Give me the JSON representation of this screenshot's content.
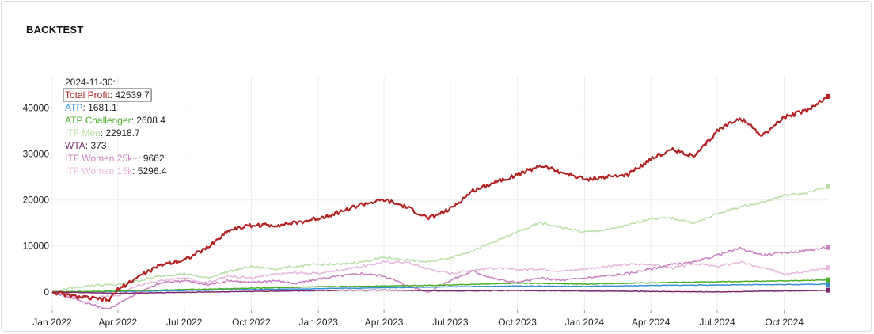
{
  "card": {
    "title": "BACKTEST"
  },
  "chart_data": {
    "type": "line",
    "title": "",
    "xlabel": "",
    "ylabel": "",
    "x_range": [
      "2022-01-01",
      "2024-11-30"
    ],
    "ylim": [
      -4000,
      47000
    ],
    "y_ticks": [
      0,
      10000,
      20000,
      30000,
      40000
    ],
    "x_ticks": [
      {
        "date": "2022-01-01",
        "label": "Jan 2022"
      },
      {
        "date": "2022-04-01",
        "label": "Apr 2022"
      },
      {
        "date": "2022-07-01",
        "label": "Jul 2022"
      },
      {
        "date": "2022-10-01",
        "label": "Oct 2022"
      },
      {
        "date": "2023-01-01",
        "label": "Jan 2023"
      },
      {
        "date": "2023-04-01",
        "label": "Apr 2023"
      },
      {
        "date": "2023-07-01",
        "label": "Jul 2023"
      },
      {
        "date": "2023-10-01",
        "label": "Oct 2023"
      },
      {
        "date": "2024-01-01",
        "label": "Jan 2024"
      },
      {
        "date": "2024-04-01",
        "label": "Apr 2024"
      },
      {
        "date": "2024-07-01",
        "label": "Jul 2024"
      },
      {
        "date": "2024-10-01",
        "label": "Oct 2024"
      }
    ],
    "grid": true,
    "legend": {
      "placement": "top-left",
      "date": "2024-11-30:"
    },
    "series": [
      {
        "name": "ITF Women 15k",
        "color": "#e6b8dc",
        "final_value": "5296.4",
        "points": [
          [
            "2022-01-01",
            0
          ],
          [
            "2022-02-01",
            -1000
          ],
          [
            "2022-03-01",
            -1200
          ],
          [
            "2022-04-01",
            -800
          ],
          [
            "2022-05-01",
            1500
          ],
          [
            "2022-06-01",
            2500
          ],
          [
            "2022-07-01",
            3000
          ],
          [
            "2022-08-01",
            2000
          ],
          [
            "2022-09-01",
            3500
          ],
          [
            "2022-10-01",
            3000
          ],
          [
            "2022-11-01",
            3800
          ],
          [
            "2022-12-01",
            4200
          ],
          [
            "2023-01-01",
            4000
          ],
          [
            "2023-02-01",
            4800
          ],
          [
            "2023-03-01",
            5500
          ],
          [
            "2023-04-01",
            6500
          ],
          [
            "2023-05-01",
            6500
          ],
          [
            "2023-06-01",
            5000
          ],
          [
            "2023-07-01",
            4000
          ],
          [
            "2023-08-01",
            4800
          ],
          [
            "2023-09-01",
            5200
          ],
          [
            "2023-10-01",
            4800
          ],
          [
            "2023-11-01",
            5000
          ],
          [
            "2023-12-01",
            4500
          ],
          [
            "2024-01-01",
            5000
          ],
          [
            "2024-02-01",
            5500
          ],
          [
            "2024-03-01",
            6000
          ],
          [
            "2024-04-01",
            6000
          ],
          [
            "2024-05-01",
            5200
          ],
          [
            "2024-06-01",
            6200
          ],
          [
            "2024-07-01",
            5500
          ],
          [
            "2024-08-01",
            6500
          ],
          [
            "2024-09-01",
            5200
          ],
          [
            "2024-10-01",
            4000
          ],
          [
            "2024-11-01",
            4500
          ],
          [
            "2024-11-30",
            5296.4
          ]
        ]
      },
      {
        "name": "ITF Women 25k+",
        "color": "#c97fbf",
        "final_value": "9662",
        "points": [
          [
            "2022-01-01",
            0
          ],
          [
            "2022-02-01",
            -1500
          ],
          [
            "2022-03-01",
            -3000
          ],
          [
            "2022-03-20",
            -3800
          ],
          [
            "2022-04-01",
            -2500
          ],
          [
            "2022-05-01",
            0
          ],
          [
            "2022-06-01",
            2000
          ],
          [
            "2022-07-01",
            2500
          ],
          [
            "2022-08-01",
            1500
          ],
          [
            "2022-09-01",
            2500
          ],
          [
            "2022-10-01",
            2000
          ],
          [
            "2022-11-01",
            2500
          ],
          [
            "2022-12-01",
            1800
          ],
          [
            "2023-01-01",
            2800
          ],
          [
            "2023-02-01",
            3500
          ],
          [
            "2023-03-01",
            4000
          ],
          [
            "2023-04-01",
            3500
          ],
          [
            "2023-05-01",
            1500
          ],
          [
            "2023-06-01",
            0
          ],
          [
            "2023-07-01",
            2500
          ],
          [
            "2023-08-01",
            4500
          ],
          [
            "2023-09-01",
            2800
          ],
          [
            "2023-10-01",
            2000
          ],
          [
            "2023-11-01",
            3000
          ],
          [
            "2023-12-01",
            2500
          ],
          [
            "2024-01-01",
            3000
          ],
          [
            "2024-02-01",
            3500
          ],
          [
            "2024-03-01",
            4000
          ],
          [
            "2024-04-01",
            5000
          ],
          [
            "2024-05-01",
            6000
          ],
          [
            "2024-06-01",
            6500
          ],
          [
            "2024-07-01",
            8000
          ],
          [
            "2024-08-01",
            9500
          ],
          [
            "2024-09-01",
            8000
          ],
          [
            "2024-10-01",
            8500
          ],
          [
            "2024-11-01",
            9000
          ],
          [
            "2024-11-30",
            9662
          ]
        ]
      },
      {
        "name": "ITF Men",
        "color": "#b8e0a8",
        "final_value": "22918.7",
        "points": [
          [
            "2022-01-01",
            0
          ],
          [
            "2022-02-01",
            1000
          ],
          [
            "2022-03-01",
            1500
          ],
          [
            "2022-04-01",
            1500
          ],
          [
            "2022-05-01",
            2500
          ],
          [
            "2022-06-01",
            3500
          ],
          [
            "2022-07-01",
            4000
          ],
          [
            "2022-08-01",
            3000
          ],
          [
            "2022-09-01",
            4500
          ],
          [
            "2022-10-01",
            5500
          ],
          [
            "2022-11-01",
            5000
          ],
          [
            "2022-12-01",
            5500
          ],
          [
            "2023-01-01",
            6000
          ],
          [
            "2023-02-01",
            6000
          ],
          [
            "2023-03-01",
            6500
          ],
          [
            "2023-04-01",
            7500
          ],
          [
            "2023-05-01",
            7000
          ],
          [
            "2023-06-01",
            6500
          ],
          [
            "2023-07-01",
            7500
          ],
          [
            "2023-08-01",
            9000
          ],
          [
            "2023-09-01",
            11000
          ],
          [
            "2023-10-01",
            13000
          ],
          [
            "2023-11-01",
            15000
          ],
          [
            "2023-12-01",
            14000
          ],
          [
            "2024-01-01",
            13000
          ],
          [
            "2024-02-01",
            13500
          ],
          [
            "2024-03-01",
            14500
          ],
          [
            "2024-04-01",
            16000
          ],
          [
            "2024-05-01",
            16000
          ],
          [
            "2024-06-01",
            15000
          ],
          [
            "2024-07-01",
            17000
          ],
          [
            "2024-08-01",
            18500
          ],
          [
            "2024-09-01",
            19500
          ],
          [
            "2024-10-01",
            21000
          ],
          [
            "2024-11-01",
            21500
          ],
          [
            "2024-11-30",
            22918.7
          ]
        ]
      },
      {
        "name": "ATP",
        "color": "#3a8fd9",
        "final_value": "1681.1",
        "points": [
          [
            "2022-01-01",
            0
          ],
          [
            "2022-04-01",
            100
          ],
          [
            "2022-07-01",
            300
          ],
          [
            "2022-10-01",
            500
          ],
          [
            "2023-01-01",
            700
          ],
          [
            "2023-04-01",
            900
          ],
          [
            "2023-07-01",
            1100
          ],
          [
            "2023-10-01",
            1300
          ],
          [
            "2024-01-01",
            1200
          ],
          [
            "2024-04-01",
            1400
          ],
          [
            "2024-07-01",
            1500
          ],
          [
            "2024-10-01",
            1600
          ],
          [
            "2024-11-30",
            1681.1
          ]
        ]
      },
      {
        "name": "ATP Challenger",
        "color": "#4caf2a",
        "final_value": "2608.4",
        "points": [
          [
            "2022-01-01",
            0
          ],
          [
            "2022-04-01",
            200
          ],
          [
            "2022-07-01",
            500
          ],
          [
            "2022-10-01",
            800
          ],
          [
            "2023-01-01",
            1100
          ],
          [
            "2023-04-01",
            1300
          ],
          [
            "2023-07-01",
            1500
          ],
          [
            "2023-10-01",
            1900
          ],
          [
            "2024-01-01",
            1700
          ],
          [
            "2024-04-01",
            2000
          ],
          [
            "2024-07-01",
            2200
          ],
          [
            "2024-10-01",
            2400
          ],
          [
            "2024-11-30",
            2608.4
          ]
        ]
      },
      {
        "name": "WTA",
        "color": "#7d2b6e",
        "final_value": "373",
        "points": [
          [
            "2022-01-01",
            0
          ],
          [
            "2022-04-01",
            -300
          ],
          [
            "2022-07-01",
            -100
          ],
          [
            "2022-10-01",
            100
          ],
          [
            "2023-01-01",
            300
          ],
          [
            "2023-04-01",
            400
          ],
          [
            "2023-07-01",
            200
          ],
          [
            "2023-10-01",
            300
          ],
          [
            "2024-01-01",
            200
          ],
          [
            "2024-04-01",
            100
          ],
          [
            "2024-07-01",
            0
          ],
          [
            "2024-10-01",
            200
          ],
          [
            "2024-11-30",
            373
          ]
        ]
      },
      {
        "name": "Total Profit",
        "color": "#b22222",
        "final_value": "42539.7",
        "points": [
          [
            "2022-01-01",
            0
          ],
          [
            "2022-02-01",
            -1000
          ],
          [
            "2022-03-01",
            -1500
          ],
          [
            "2022-03-20",
            -1800
          ],
          [
            "2022-04-01",
            500
          ],
          [
            "2022-05-01",
            3500
          ],
          [
            "2022-06-01",
            6000
          ],
          [
            "2022-07-01",
            7000
          ],
          [
            "2022-08-01",
            9500
          ],
          [
            "2022-09-01",
            13500
          ],
          [
            "2022-10-01",
            14500
          ],
          [
            "2022-11-01",
            14500
          ],
          [
            "2022-12-01",
            15000
          ],
          [
            "2023-01-01",
            16000
          ],
          [
            "2023-02-01",
            17500
          ],
          [
            "2023-03-01",
            19000
          ],
          [
            "2023-04-01",
            20000
          ],
          [
            "2023-05-01",
            18500
          ],
          [
            "2023-06-01",
            16000
          ],
          [
            "2023-07-01",
            18000
          ],
          [
            "2023-08-01",
            22000
          ],
          [
            "2023-09-01",
            24000
          ],
          [
            "2023-10-01",
            25500
          ],
          [
            "2023-11-01",
            27500
          ],
          [
            "2023-12-01",
            26000
          ],
          [
            "2024-01-01",
            24500
          ],
          [
            "2024-02-01",
            25000
          ],
          [
            "2024-03-01",
            25500
          ],
          [
            "2024-04-01",
            29000
          ],
          [
            "2024-05-01",
            31000
          ],
          [
            "2024-06-01",
            29500
          ],
          [
            "2024-07-01",
            35000
          ],
          [
            "2024-08-01",
            38000
          ],
          [
            "2024-09-01",
            34000
          ],
          [
            "2024-10-01",
            38000
          ],
          [
            "2024-11-01",
            39500
          ],
          [
            "2024-11-30",
            42539.7
          ]
        ]
      }
    ]
  }
}
